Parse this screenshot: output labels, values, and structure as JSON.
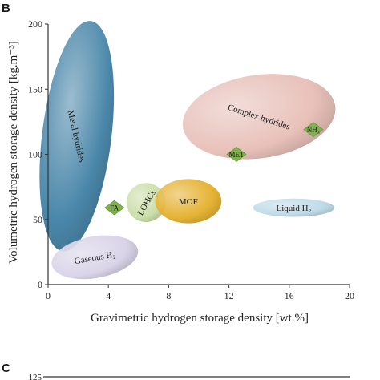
{
  "panels": {
    "top_letter": "B",
    "bottom_letter": "C",
    "bottom_first_tick": "125"
  },
  "chart_data": {
    "type": "scatter",
    "xlabel": "Gravimetric hydrogen storage density [wt.%]",
    "ylabel": "Volumetric hydrogen storage density [kg.m⁻³]",
    "xlim": [
      0,
      20
    ],
    "ylim": [
      0,
      200
    ],
    "x_ticks": [
      0,
      4,
      8,
      12,
      16,
      20
    ],
    "y_ticks": [
      0,
      50,
      100,
      150,
      200
    ],
    "grid": false,
    "regions": [
      {
        "label": "Metal hydrides",
        "cx": 1.9,
        "cy": 114,
        "rx": 2.3,
        "ry": 89,
        "rotation_deg": 7,
        "color": "#3a7ca2",
        "label_rotation": 77
      },
      {
        "label": "Gaseous H₂",
        "cx": 3.1,
        "cy": 21,
        "rx": 2.9,
        "ry": 16,
        "rotation_deg": -10,
        "color": "#d6d0e6",
        "label_rotation": -10
      },
      {
        "label": "LOHCs",
        "cx": 6.5,
        "cy": 63,
        "rx": 1.3,
        "ry": 15,
        "rotation_deg": 0,
        "color": "#c8dca2",
        "label_rotation": -60
      },
      {
        "label": "MOF",
        "cx": 9.3,
        "cy": 64,
        "rx": 2.2,
        "ry": 17,
        "rotation_deg": 0,
        "color": "#e3ac22",
        "label_rotation": 0
      },
      {
        "label": "Complex hydrides",
        "cx": 14.0,
        "cy": 129,
        "rx": 5.1,
        "ry": 32,
        "rotation_deg": -8,
        "color": "#e6bcb4",
        "label_rotation": 18
      },
      {
        "label": "Liquid H₂",
        "cx": 16.3,
        "cy": 59,
        "rx": 2.7,
        "ry": 7,
        "rotation_deg": 0,
        "color": "#bad8e6",
        "label_rotation": 0
      }
    ],
    "points": [
      {
        "label": "FA",
        "x": 4.4,
        "y": 59
      },
      {
        "label": "MET",
        "x": 12.5,
        "y": 100
      },
      {
        "label": "NH₃",
        "x": 17.6,
        "y": 119
      }
    ],
    "marker_color": "#7fb24a"
  }
}
